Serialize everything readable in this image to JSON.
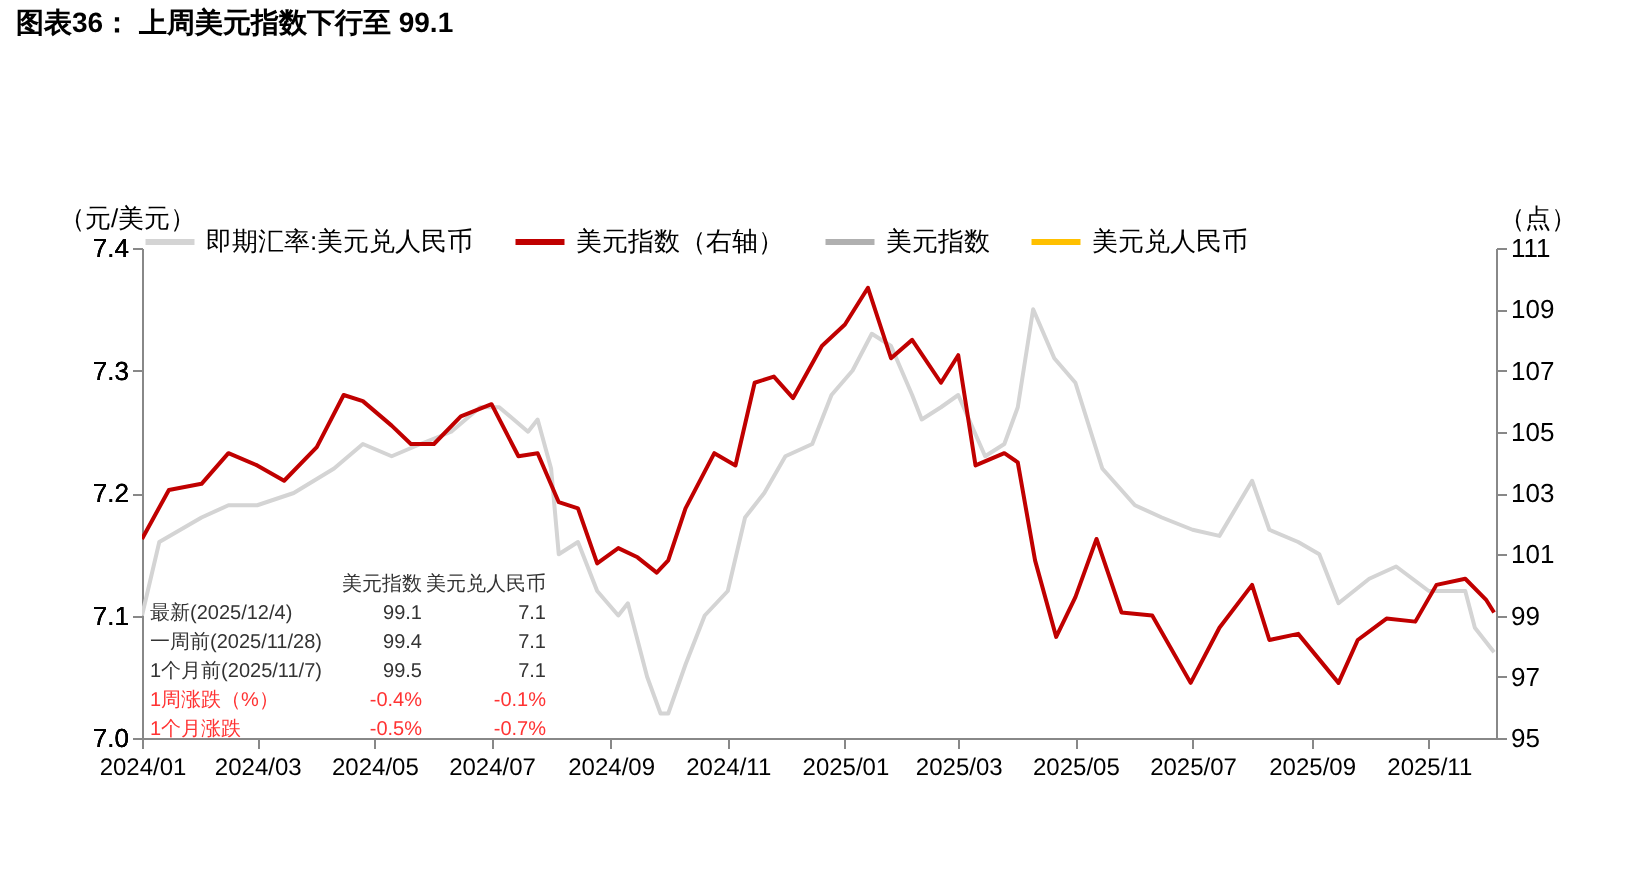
{
  "chart_data": {
    "type": "line",
    "title": "图表36： 上周美元指数下行至 99.1",
    "ylabel": "（元/美元）",
    "y2label": "（点）",
    "legend": "top",
    "grid": false,
    "xlim": [
      "2024-01-01",
      "2025-12-06"
    ],
    "xticks": [
      {
        "value": "2024-01-01",
        "label": "2024/01"
      },
      {
        "value": "2024-03-01",
        "label": "2024/03"
      },
      {
        "value": "2024-05-01",
        "label": "2024/05"
      },
      {
        "value": "2024-07-01",
        "label": "2024/07"
      },
      {
        "value": "2024-09-01",
        "label": "2024/09"
      },
      {
        "value": "2024-11-01",
        "label": "2024/11"
      },
      {
        "value": "2025-01-01",
        "label": "2025/01"
      },
      {
        "value": "2025-03-01",
        "label": "2025/03"
      },
      {
        "value": "2025-05-01",
        "label": "2025/05"
      },
      {
        "value": "2025-07-01",
        "label": "2025/07"
      },
      {
        "value": "2025-09-01",
        "label": "2025/09"
      },
      {
        "value": "2025-11-01",
        "label": "2025/11"
      }
    ],
    "ylim": [
      7.0,
      7.4
    ],
    "yticks": [
      {
        "value": 7.0,
        "label": "7.0"
      },
      7.1,
      7.2,
      7.3,
      7.4
    ],
    "y2lim": [
      95,
      111
    ],
    "y2ticks": [
      95,
      97,
      99,
      101,
      103,
      105,
      107,
      109,
      111
    ],
    "series": [
      {
        "name": "即期汇率:美元兑人民币",
        "color": "#d4d4d4",
        "x": [
          "2024-01-01",
          "2024-01-10",
          "2024-02-01",
          "2024-02-15",
          "2024-03-01",
          "2024-03-20",
          "2024-04-10",
          "2024-04-25",
          "2024-05-10",
          "2024-05-25",
          "2024-06-10",
          "2024-06-25",
          "2024-07-05",
          "2024-07-20",
          "2024-07-25",
          "2024-08-01",
          "2024-08-05",
          "2024-08-15",
          "2024-08-25",
          "2024-09-05",
          "2024-09-10",
          "2024-09-20",
          "2024-09-27",
          "2024-10-01",
          "2024-10-10",
          "2024-10-20",
          "2024-11-01",
          "2024-11-10",
          "2024-11-20",
          "2024-12-01",
          "2024-12-15",
          "2024-12-25",
          "2025-01-05",
          "2025-01-15",
          "2025-01-25",
          "2025-02-05",
          "2025-02-10",
          "2025-02-20",
          "2025-03-01",
          "2025-03-15",
          "2025-03-25",
          "2025-04-01",
          "2025-04-09",
          "2025-04-20",
          "2025-05-01",
          "2025-05-15",
          "2025-06-01",
          "2025-06-15",
          "2025-07-01",
          "2025-07-15",
          "2025-08-01",
          "2025-08-10",
          "2025-08-25",
          "2025-09-05",
          "2025-09-15",
          "2025-10-01",
          "2025-10-15",
          "2025-11-01",
          "2025-11-20",
          "2025-11-25",
          "2025-12-05"
        ],
        "values": [
          7.1,
          7.16,
          7.18,
          7.19,
          7.19,
          7.2,
          7.22,
          7.24,
          7.23,
          7.24,
          7.25,
          7.27,
          7.27,
          7.25,
          7.26,
          7.22,
          7.15,
          7.16,
          7.12,
          7.1,
          7.11,
          7.05,
          7.02,
          7.02,
          7.06,
          7.1,
          7.12,
          7.18,
          7.2,
          7.23,
          7.24,
          7.28,
          7.3,
          7.33,
          7.32,
          7.28,
          7.26,
          7.27,
          7.28,
          7.23,
          7.24,
          7.27,
          7.35,
          7.31,
          7.29,
          7.22,
          7.19,
          7.18,
          7.17,
          7.165,
          7.21,
          7.17,
          7.16,
          7.15,
          7.11,
          7.13,
          7.14,
          7.12,
          7.12,
          7.09,
          7.07
        ]
      },
      {
        "name": "美元指数（右轴）",
        "color": "#c00000",
        "axis": "y2",
        "x": [
          "2024-01-01",
          "2024-01-15",
          "2024-02-01",
          "2024-02-15",
          "2024-03-01",
          "2024-03-15",
          "2024-04-01",
          "2024-04-15",
          "2024-04-25",
          "2024-05-10",
          "2024-05-20",
          "2024-06-01",
          "2024-06-15",
          "2024-07-01",
          "2024-07-15",
          "2024-07-25",
          "2024-08-05",
          "2024-08-15",
          "2024-08-25",
          "2024-09-05",
          "2024-09-15",
          "2024-09-25",
          "2024-10-01",
          "2024-10-10",
          "2024-10-25",
          "2024-11-05",
          "2024-11-15",
          "2024-11-25",
          "2024-12-05",
          "2024-12-20",
          "2025-01-01",
          "2025-01-13",
          "2025-01-25",
          "2025-02-05",
          "2025-02-20",
          "2025-03-01",
          "2025-03-10",
          "2025-03-25",
          "2025-04-01",
          "2025-04-10",
          "2025-04-21",
          "2025-05-01",
          "2025-05-12",
          "2025-05-25",
          "2025-06-10",
          "2025-06-30",
          "2025-07-15",
          "2025-08-01",
          "2025-08-10",
          "2025-08-25",
          "2025-09-15",
          "2025-09-25",
          "2025-10-10",
          "2025-10-25",
          "2025-11-05",
          "2025-11-20",
          "2025-12-01",
          "2025-12-05"
        ],
        "values": [
          101.5,
          103.1,
          103.3,
          104.3,
          103.9,
          103.4,
          104.5,
          106.2,
          106.0,
          105.2,
          104.6,
          104.6,
          105.5,
          105.9,
          104.2,
          104.3,
          102.7,
          102.5,
          100.7,
          101.2,
          100.9,
          100.4,
          100.8,
          102.5,
          104.3,
          103.9,
          106.6,
          106.8,
          106.1,
          107.8,
          108.5,
          109.7,
          107.4,
          108.0,
          106.6,
          107.5,
          103.9,
          104.3,
          104.0,
          100.8,
          98.3,
          99.6,
          101.5,
          99.1,
          99.0,
          96.8,
          98.6,
          100.0,
          98.2,
          98.4,
          96.8,
          98.2,
          98.9,
          98.8,
          100.0,
          100.2,
          99.5,
          99.1
        ]
      },
      {
        "name": "美元指数",
        "color": "#b0b0b0"
      },
      {
        "name": "美元兑人民币",
        "color": "#ffc000"
      }
    ],
    "annotations": [
      "美元指数",
      "美元兑人民币",
      "最新(2025/12/4)",
      "99.1",
      "7.1",
      "一周前(2025/11/28)",
      "99.4",
      "7.1",
      "1个月前(2025/11/7)",
      "99.5",
      "7.1",
      "1周涨跌（%）",
      "-0.4%",
      "-0.1%",
      "1个月涨跌",
      "-0.5%",
      "-0.7%"
    ]
  }
}
